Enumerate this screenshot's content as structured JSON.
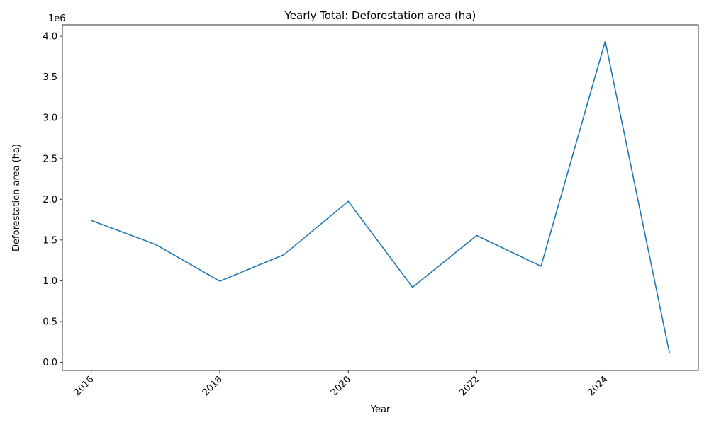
{
  "chart_data": {
    "type": "line",
    "title": "Yearly Total: Deforestation area (ha)",
    "xlabel": "Year",
    "ylabel": "Deforestation area (ha)",
    "offset_text": "1e6",
    "x": [
      2016,
      2017,
      2018,
      2019,
      2020,
      2021,
      2022,
      2023,
      2024,
      2025
    ],
    "series": [
      {
        "values": [
          1740000,
          1445000,
          995000,
          1320000,
          1975000,
          920000,
          1555000,
          1178000,
          3940000,
          115000
        ],
        "color": "#1f77b4"
      }
    ],
    "xlim": [
      2015.55,
      2025.45
    ],
    "ylim": [
      -0.1,
      4.14
    ],
    "x_ticks": [
      2016,
      2018,
      2020,
      2022,
      2024
    ],
    "x_tick_labels": [
      "2016",
      "2018",
      "2020",
      "2022",
      "2024"
    ],
    "y_ticks": [
      0.0,
      0.5,
      1.0,
      1.5,
      2.0,
      2.5,
      3.0,
      3.5,
      4.0
    ],
    "y_tick_labels": [
      "0.0",
      "0.5",
      "1.0",
      "1.5",
      "2.0",
      "2.5",
      "3.0",
      "3.5",
      "4.0"
    ],
    "grid": false,
    "legend": "none"
  }
}
